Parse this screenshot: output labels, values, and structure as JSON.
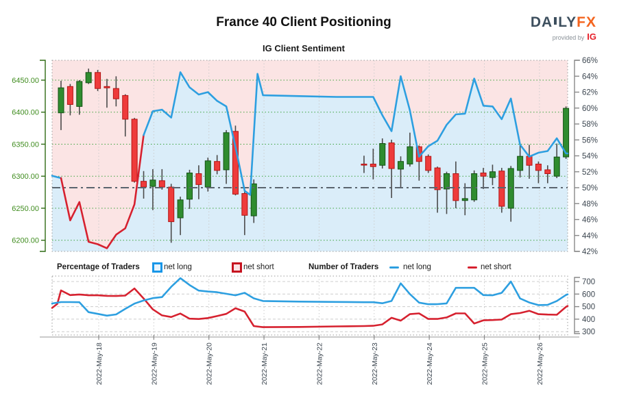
{
  "header": {
    "title": "France 40 Client Positioning",
    "subtitle": "IG Client Sentiment",
    "brand_daily": "DA",
    "brand_ly": "LY",
    "brand_fx": "FX",
    "provided_by": "provided by",
    "ig": "IG"
  },
  "legend": {
    "pct_header": "Percentage of Traders",
    "num_header": "Number of Traders",
    "net_long": "net long",
    "net_short": "net short"
  },
  "colors": {
    "accent_blue": "#2d9fe0",
    "accent_red": "#d6212f",
    "candle_green": "#2f8c2f",
    "candle_green_dark": "#145214",
    "candle_red": "#ee3b3b",
    "candle_red_dark": "#b31414",
    "wick": "#4a4a4a",
    "fill_pink": "#fbe4e4",
    "fill_blue": "#daedf9",
    "grid_green": "#3aa23a",
    "grid_gray": "#cccccc",
    "frame_gray": "#aaaaaa",
    "axis_green": "#2d6a12",
    "label_green": "#3f8c1e",
    "label_slate": "#3c4650",
    "axis_gray": "#888888",
    "ref_line": "#5a646e"
  },
  "chart_data": [
    {
      "type": "candlestick+line",
      "title": "IG Client Sentiment",
      "x_labels": [
        "2022-May-18",
        "2022-May-19",
        "2022-May-20",
        "2022-May-21",
        "2022-May-22",
        "2022-May-23",
        "2022-May-24",
        "2022-May-25",
        "2022-May-26"
      ],
      "slots_per_day": 6,
      "price_axis": {
        "side": "left",
        "ticks": [
          6450,
          6400,
          6350,
          6300,
          6250,
          6200
        ]
      },
      "percent_axis": {
        "side": "right",
        "min": 42,
        "max": 66,
        "step": 2
      },
      "reference_percent": 50,
      "net_short_majority_slot_range": [
        0.25,
        9
      ],
      "candles": [
        [
          0,
          6399,
          6449,
          6372,
          6438
        ],
        [
          1,
          6440,
          6444,
          6395,
          6412
        ],
        [
          2,
          6409,
          6450,
          6396,
          6448
        ],
        [
          3,
          6446,
          6468,
          6444,
          6462
        ],
        [
          4,
          6462,
          6466,
          6433,
          6437
        ],
        [
          5,
          6440,
          6452,
          6407,
          6438
        ],
        [
          6,
          6437,
          6456,
          6409,
          6421
        ],
        [
          7,
          6426,
          6428,
          6362,
          6389
        ],
        [
          8,
          6389,
          6391,
          6290,
          6292
        ],
        [
          9,
          6292,
          6308,
          6265,
          6283
        ],
        [
          10,
          6284,
          6311,
          6247,
          6294
        ],
        [
          11,
          6293,
          6311,
          6279,
          6283
        ],
        [
          12,
          6283,
          6288,
          6196,
          6229
        ],
        [
          13,
          6235,
          6268,
          6208,
          6263
        ],
        [
          14,
          6264,
          6310,
          6249,
          6305
        ],
        [
          15,
          6304,
          6317,
          6264,
          6287
        ],
        [
          16,
          6283,
          6329,
          6276,
          6324
        ],
        [
          17,
          6323,
          6333,
          6303,
          6309
        ],
        [
          18,
          6310,
          6372,
          6288,
          6368
        ],
        [
          19,
          6370,
          6379,
          6270,
          6272
        ],
        [
          20,
          6273,
          6276,
          6208,
          6239
        ],
        [
          21,
          6238,
          6295,
          6227,
          6288
        ],
        [
          33,
          6319,
          6332,
          6305,
          6318
        ],
        [
          34,
          6319,
          6343,
          6295,
          6315
        ],
        [
          35,
          6317,
          6359,
          6312,
          6351
        ],
        [
          36,
          6352,
          6357,
          6266,
          6312
        ],
        [
          37,
          6311,
          6331,
          6283,
          6323
        ],
        [
          38,
          6319,
          6368,
          6315,
          6346
        ],
        [
          39,
          6346,
          6348,
          6293,
          6323
        ],
        [
          40,
          6331,
          6334,
          6305,
          6309
        ],
        [
          41,
          6313,
          6315,
          6243,
          6279
        ],
        [
          42,
          6280,
          6307,
          6241,
          6304
        ],
        [
          43,
          6304,
          6323,
          6250,
          6262
        ],
        [
          44,
          6262,
          6289,
          6239,
          6265
        ],
        [
          45,
          6263,
          6309,
          6260,
          6304
        ],
        [
          46,
          6305,
          6313,
          6280,
          6300
        ],
        [
          47,
          6298,
          6318,
          6286,
          6307
        ],
        [
          48,
          6308,
          6313,
          6243,
          6253
        ],
        [
          49,
          6250,
          6316,
          6229,
          6312
        ],
        [
          50,
          6309,
          6350,
          6298,
          6331
        ],
        [
          51,
          6331,
          6349,
          6296,
          6317
        ],
        [
          52,
          6319,
          6323,
          6289,
          6309
        ],
        [
          53,
          6310,
          6317,
          6289,
          6304
        ],
        [
          54,
          6300,
          6351,
          6297,
          6330
        ],
        [
          55,
          6330,
          6409,
          6327,
          6406
        ]
      ],
      "sentiment_pct": [
        [
          -0.97,
          51.5
        ],
        [
          0,
          51.2
        ],
        [
          1,
          45.9
        ],
        [
          2,
          48.2
        ],
        [
          3,
          43.2
        ],
        [
          4,
          42.9
        ],
        [
          5,
          42.4
        ],
        [
          6,
          44.1
        ],
        [
          7,
          44.9
        ],
        [
          8,
          47.9
        ],
        [
          9,
          56.6
        ],
        [
          10,
          59.6
        ],
        [
          11,
          59.8
        ],
        [
          12,
          58.8
        ],
        [
          13,
          64.5
        ],
        [
          14,
          62.6
        ],
        [
          15,
          61.7
        ],
        [
          16,
          62.0
        ],
        [
          17,
          60.9
        ],
        [
          18,
          60.2
        ],
        [
          19,
          55.1
        ],
        [
          20,
          49.6
        ],
        [
          20.6,
          49.1
        ],
        [
          21.4,
          64.3
        ],
        [
          22,
          61.6
        ],
        [
          26,
          61.5
        ],
        [
          30,
          61.4
        ],
        [
          34,
          61.4
        ],
        [
          35,
          59.1
        ],
        [
          36,
          57.1
        ],
        [
          37,
          64.0
        ],
        [
          38,
          59.7
        ],
        [
          39,
          53.9
        ],
        [
          40,
          55.2
        ],
        [
          41,
          55.9
        ],
        [
          42,
          57.9
        ],
        [
          43,
          59.2
        ],
        [
          44,
          59.3
        ],
        [
          45,
          63.7
        ],
        [
          46,
          60.3
        ],
        [
          47,
          60.2
        ],
        [
          48,
          58.6
        ],
        [
          49,
          61.2
        ],
        [
          50,
          55.4
        ],
        [
          51,
          53.9
        ],
        [
          52,
          54.4
        ],
        [
          53,
          54.6
        ],
        [
          54,
          56.2
        ],
        [
          55,
          54.3
        ],
        [
          55.2,
          54.3
        ]
      ]
    },
    {
      "type": "line",
      "value_axis": {
        "side": "right",
        "ticks": [
          700,
          600,
          500,
          400,
          300
        ]
      },
      "series": [
        {
          "name": "net long",
          "color_key": "accent_blue",
          "points": [
            [
              -0.97,
              525
            ],
            [
              0,
              536
            ],
            [
              1,
              536
            ],
            [
              2,
              535
            ],
            [
              3,
              456
            ],
            [
              4,
              442
            ],
            [
              5,
              428
            ],
            [
              6,
              438
            ],
            [
              7,
              482
            ],
            [
              8,
              524
            ],
            [
              9,
              549
            ],
            [
              10,
              568
            ],
            [
              11,
              576
            ],
            [
              12,
              658
            ],
            [
              13,
              727
            ],
            [
              14,
              672
            ],
            [
              15,
              628
            ],
            [
              16,
              620
            ],
            [
              17,
              615
            ],
            [
              18,
              602
            ],
            [
              19,
              590
            ],
            [
              20,
              610
            ],
            [
              21,
              566
            ],
            [
              22,
              545
            ],
            [
              26,
              540
            ],
            [
              30,
              537
            ],
            [
              33,
              535
            ],
            [
              34,
              535
            ],
            [
              35,
              527
            ],
            [
              36,
              545
            ],
            [
              37,
              686
            ],
            [
              38,
              600
            ],
            [
              39,
              532
            ],
            [
              40,
              519
            ],
            [
              41,
              520
            ],
            [
              42,
              526
            ],
            [
              43,
              650
            ],
            [
              44,
              650
            ],
            [
              45,
              650
            ],
            [
              46,
              592
            ],
            [
              47,
              590
            ],
            [
              48,
              610
            ],
            [
              49,
              700
            ],
            [
              50,
              565
            ],
            [
              51,
              533
            ],
            [
              52,
              512
            ],
            [
              53,
              514
            ],
            [
              54,
              545
            ],
            [
              55,
              593
            ],
            [
              55.2,
              598
            ]
          ]
        },
        {
          "name": "net short",
          "color_key": "accent_red",
          "points": [
            [
              -0.97,
              490
            ],
            [
              -0.4,
              522
            ],
            [
              0,
              629
            ],
            [
              1,
              592
            ],
            [
              2,
              597
            ],
            [
              3,
              590
            ],
            [
              4,
              590
            ],
            [
              5,
              586
            ],
            [
              6,
              585
            ],
            [
              7,
              588
            ],
            [
              8,
              645
            ],
            [
              9,
              565
            ],
            [
              10,
              478
            ],
            [
              11,
              430
            ],
            [
              12,
              417
            ],
            [
              13,
              445
            ],
            [
              14,
              404
            ],
            [
              15,
              401
            ],
            [
              16,
              409
            ],
            [
              17,
              425
            ],
            [
              18,
              442
            ],
            [
              19,
              487
            ],
            [
              20,
              460
            ],
            [
              21,
              345
            ],
            [
              22,
              336
            ],
            [
              26,
              338
            ],
            [
              30,
              342
            ],
            [
              33,
              345
            ],
            [
              34,
              347
            ],
            [
              35,
              358
            ],
            [
              36,
              411
            ],
            [
              37,
              388
            ],
            [
              38,
              440
            ],
            [
              39,
              446
            ],
            [
              40,
              402
            ],
            [
              41,
              402
            ],
            [
              42,
              414
            ],
            [
              43,
              446
            ],
            [
              44,
              446
            ],
            [
              45,
              365
            ],
            [
              46,
              391
            ],
            [
              47,
              393
            ],
            [
              48,
              397
            ],
            [
              49,
              440
            ],
            [
              50,
              449
            ],
            [
              51,
              467
            ],
            [
              52,
              440
            ],
            [
              53,
              437
            ],
            [
              54,
              435
            ],
            [
              55,
              498
            ],
            [
              55.2,
              505
            ]
          ]
        }
      ]
    }
  ]
}
